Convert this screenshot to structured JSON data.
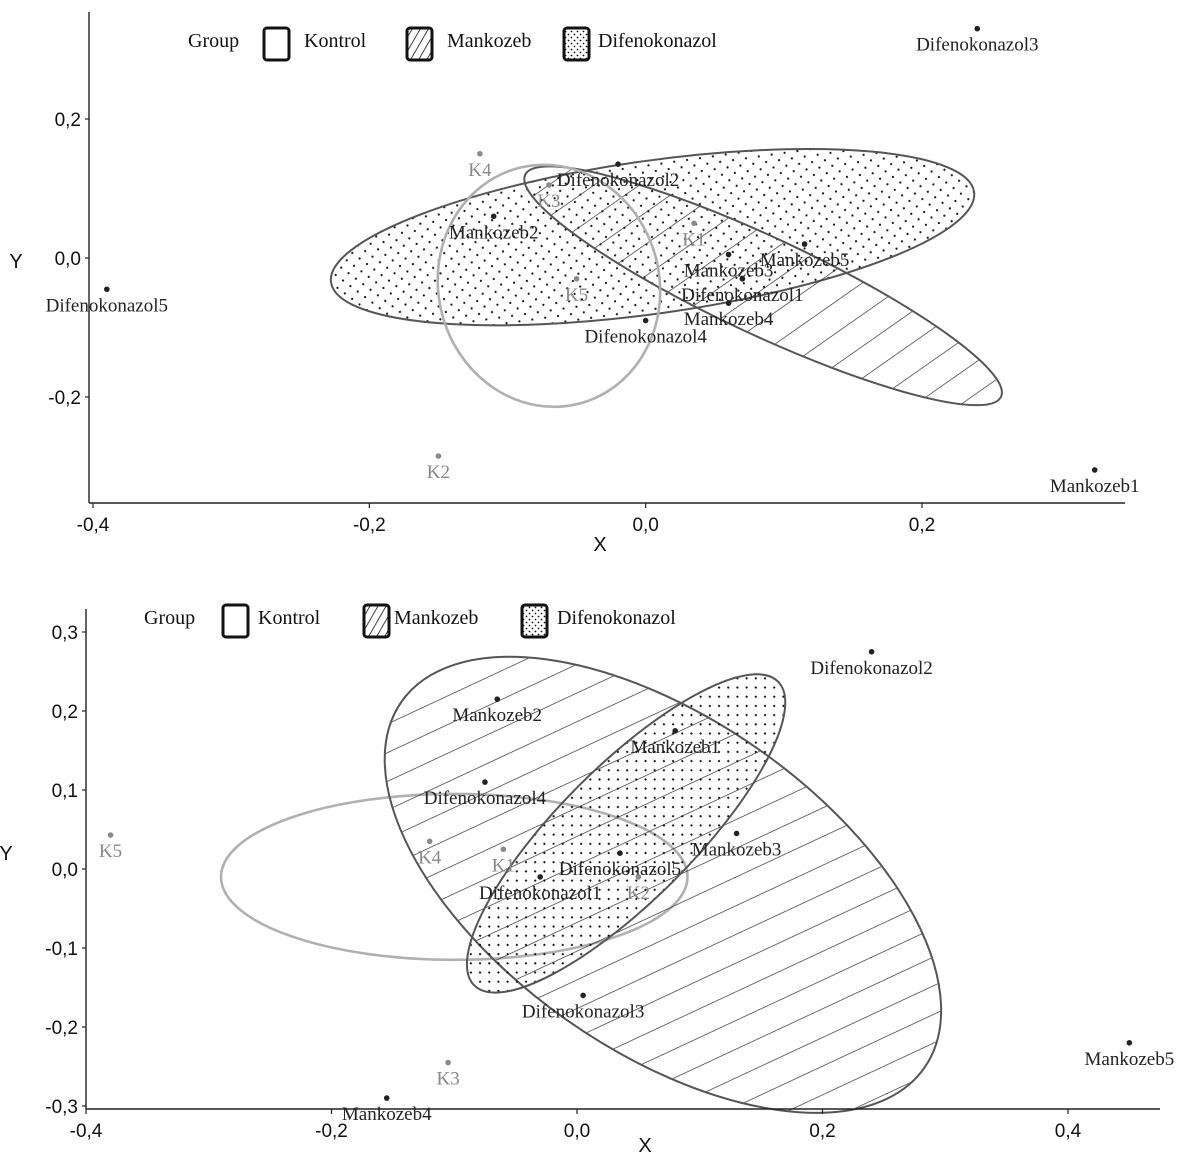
{
  "chart_data": [
    {
      "type": "scatter",
      "subtype": "discriminant-plot-with-group-ellipses",
      "xlabel": "X",
      "ylabel": "Y",
      "xlim": [
        -0.4,
        0.35
      ],
      "ylim": [
        -0.33,
        0.36
      ],
      "x_ticks": [
        -0.4,
        -0.2,
        0.0,
        0.2
      ],
      "x_tick_labels": [
        "-0,4",
        "-0,2",
        "0,0",
        "0,2"
      ],
      "y_ticks": [
        0.2,
        0.0,
        -0.2
      ],
      "y_tick_labels": [
        "0,2",
        "0,0",
        "-0,2"
      ],
      "grid": false,
      "legend": {
        "title": "Group",
        "position": "top-left",
        "items": [
          {
            "label": "Kontrol",
            "pattern": "none"
          },
          {
            "label": "Mankozeb",
            "pattern": "hatch"
          },
          {
            "label": "Difenokonazol",
            "pattern": "dots"
          }
        ]
      },
      "points": [
        {
          "label": "Difenokonazol3",
          "group": "Difenokonazol",
          "x": 0.24,
          "y": 0.33
        },
        {
          "label": "K4",
          "group": "Kontrol",
          "x": -0.12,
          "y": 0.15
        },
        {
          "label": "Difenokonazol2",
          "group": "Difenokonazol",
          "x": -0.02,
          "y": 0.135
        },
        {
          "label": "K3",
          "group": "Kontrol",
          "x": -0.07,
          "y": 0.105
        },
        {
          "label": "K1",
          "group": "Kontrol",
          "x": 0.035,
          "y": 0.05
        },
        {
          "label": "Mankozeb2",
          "group": "Mankozeb",
          "x": -0.11,
          "y": 0.06
        },
        {
          "label": "Mankozeb3",
          "group": "Mankozeb",
          "x": 0.06,
          "y": 0.005
        },
        {
          "label": "Mankozeb5",
          "group": "Mankozeb",
          "x": 0.115,
          "y": 0.02
        },
        {
          "label": "Difenokonazol5",
          "group": "Difenokonazol",
          "x": -0.39,
          "y": -0.045
        },
        {
          "label": "K5",
          "group": "Kontrol",
          "x": -0.05,
          "y": -0.03
        },
        {
          "label": "Difenokonazol1",
          "group": "Difenokonazol",
          "x": 0.07,
          "y": -0.03
        },
        {
          "label": "Mankozeb4",
          "group": "Mankozeb",
          "x": 0.06,
          "y": -0.065
        },
        {
          "label": "Difenokonazol4",
          "group": "Difenokonazol",
          "x": 0.0,
          "y": -0.09
        },
        {
          "label": "K2",
          "group": "Kontrol",
          "x": -0.15,
          "y": -0.285
        },
        {
          "label": "Mankozeb1",
          "group": "Mankozeb",
          "x": 0.325,
          "y": -0.305
        }
      ],
      "ellipses": [
        {
          "group": "Difenokonazol",
          "cx": 0.005,
          "cy": 0.03,
          "rx": 0.235,
          "ry": 0.11,
          "angle_deg": 8,
          "pattern": "dots"
        },
        {
          "group": "Mankozeb",
          "cx": 0.085,
          "cy": -0.04,
          "rx": 0.19,
          "ry": 0.07,
          "angle_deg": -25,
          "pattern": "hatch"
        },
        {
          "group": "Kontrol",
          "cx": -0.07,
          "cy": -0.04,
          "rx": 0.08,
          "ry": 0.175,
          "angle_deg": 14,
          "pattern": "none"
        }
      ]
    },
    {
      "type": "scatter",
      "subtype": "discriminant-plot-with-group-ellipses",
      "xlabel": "X",
      "ylabel": "Y",
      "xlim": [
        -0.4,
        0.47
      ],
      "ylim": [
        -0.3,
        0.31
      ],
      "x_ticks": [
        -0.4,
        -0.2,
        0.0,
        0.2,
        0.4
      ],
      "x_tick_labels": [
        "-0,4",
        "-0,2",
        "0,0",
        "0,2",
        "0,4"
      ],
      "y_ticks": [
        0.3,
        0.2,
        0.1,
        0.0,
        -0.1,
        -0.2,
        -0.3
      ],
      "y_tick_labels": [
        "0,3",
        "0,2",
        "0,1",
        "0,0",
        "-0,1",
        "-0,2",
        "-0,3"
      ],
      "grid": false,
      "legend": {
        "title": "Group",
        "position": "top-left",
        "items": [
          {
            "label": "Kontrol",
            "pattern": "none"
          },
          {
            "label": "Mankozeb",
            "pattern": "hatch"
          },
          {
            "label": "Difenokonazol",
            "pattern": "dots"
          }
        ]
      },
      "points": [
        {
          "label": "Difenokonazol2",
          "group": "Difenokonazol",
          "x": 0.24,
          "y": 0.275
        },
        {
          "label": "Mankozeb2",
          "group": "Mankozeb",
          "x": -0.065,
          "y": 0.215
        },
        {
          "label": "Mankozeb1",
          "group": "Mankozeb",
          "x": 0.08,
          "y": 0.175
        },
        {
          "label": "Difenokonazol4",
          "group": "Difenokonazol",
          "x": -0.075,
          "y": 0.11
        },
        {
          "label": "K5",
          "group": "Kontrol",
          "x": -0.38,
          "y": 0.043
        },
        {
          "label": "Mankozeb3",
          "group": "Mankozeb",
          "x": 0.13,
          "y": 0.045
        },
        {
          "label": "K4",
          "group": "Kontrol",
          "x": -0.12,
          "y": 0.035
        },
        {
          "label": "K1",
          "group": "Kontrol",
          "x": -0.06,
          "y": 0.025
        },
        {
          "label": "Difenokonazol5",
          "group": "Difenokonazol",
          "x": 0.035,
          "y": 0.02
        },
        {
          "label": "Difenokonazol1",
          "group": "Difenokonazol",
          "x": -0.03,
          "y": -0.01
        },
        {
          "label": "K2",
          "group": "Kontrol",
          "x": 0.05,
          "y": -0.01
        },
        {
          "label": "Difenokonazol3",
          "group": "Difenokonazol",
          "x": 0.005,
          "y": -0.16
        },
        {
          "label": "Mankozeb5",
          "group": "Mankozeb",
          "x": 0.45,
          "y": -0.22
        },
        {
          "label": "K3",
          "group": "Kontrol",
          "x": -0.105,
          "y": -0.245
        },
        {
          "label": "Mankozeb4",
          "group": "Mankozeb",
          "x": -0.155,
          "y": -0.29
        }
      ],
      "ellipses": [
        {
          "group": "Kontrol",
          "cx": -0.1,
          "cy": -0.01,
          "rx": 0.19,
          "ry": 0.105,
          "angle_deg": 0,
          "pattern": "none"
        },
        {
          "group": "Mankozeb",
          "cx": 0.07,
          "cy": -0.02,
          "rx": 0.26,
          "ry": 0.21,
          "angle_deg": -35,
          "pattern": "hatch"
        },
        {
          "group": "Difenokonazol",
          "cx": 0.04,
          "cy": 0.045,
          "rx": 0.175,
          "ry": 0.085,
          "angle_deg": 45,
          "pattern": "dots"
        }
      ]
    }
  ]
}
